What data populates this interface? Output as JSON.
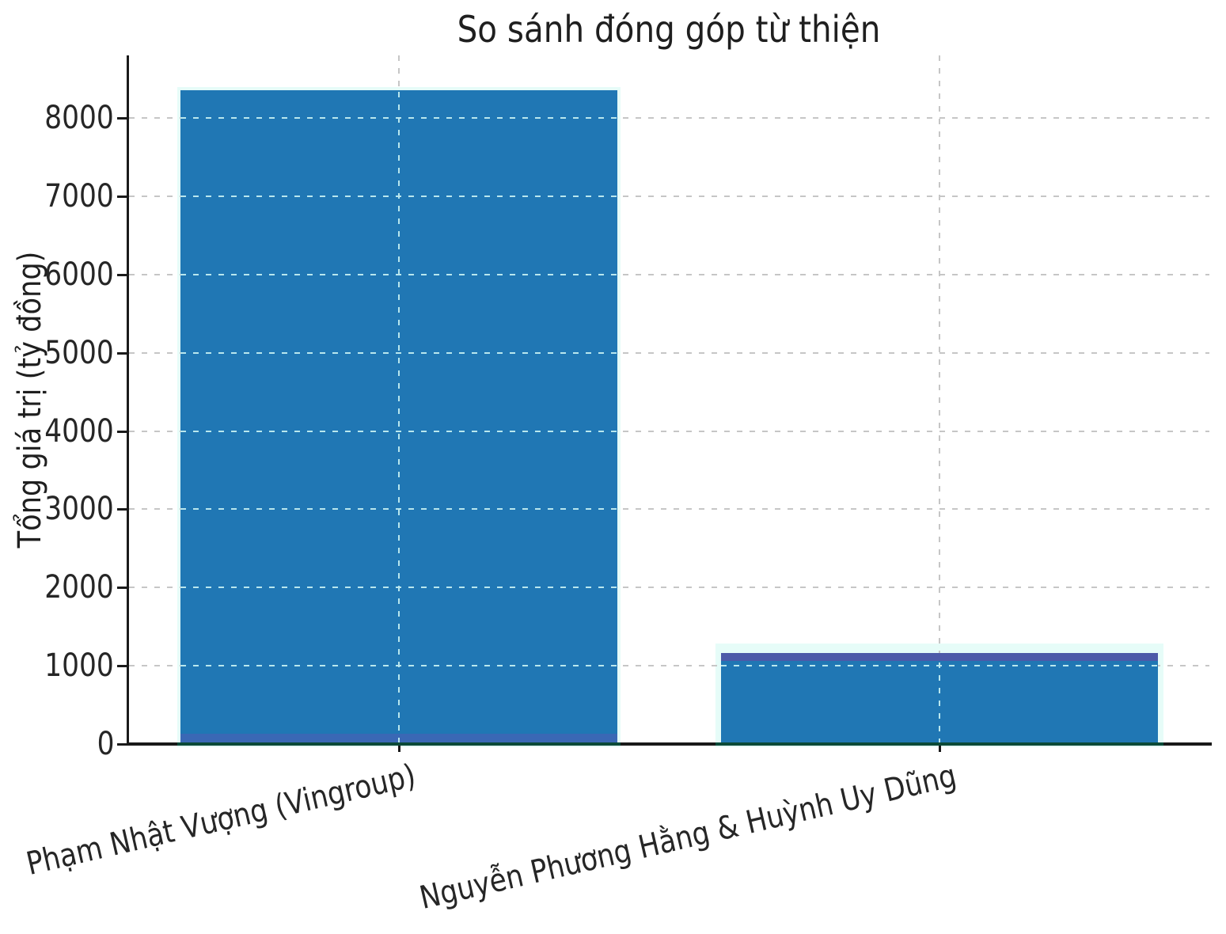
{
  "chart_data": {
    "type": "bar",
    "title": "So sánh đóng góp từ thiện",
    "ylabel": "Tổng giá trị (tỷ đồng)",
    "xlabel": "",
    "categories": [
      "Phạm Nhật Vượng (Vingroup)",
      "Nguyễn Phương Hằng & Huỳnh Uy Dũng"
    ],
    "values": [
      8350,
      1150
    ],
    "yticks": [
      0,
      1000,
      2000,
      3000,
      4000,
      5000,
      6000,
      7000,
      8000
    ],
    "ylim": [
      0,
      8800
    ],
    "grid": "dashed",
    "legend": false,
    "colors": {
      "bar_fill": "#2077b4",
      "bar_edge_halo": "#e6fcf8",
      "bar2_top_accent": "#4d5aa8",
      "bar1_bottom_accent": "#3a68b5",
      "grid_line": "#c6c6c6",
      "grid_over_bar": "#b9e7ee",
      "axis_line": "#1a1a1a",
      "axis_under_bar": "#0b4a38",
      "text": "#262626"
    }
  }
}
